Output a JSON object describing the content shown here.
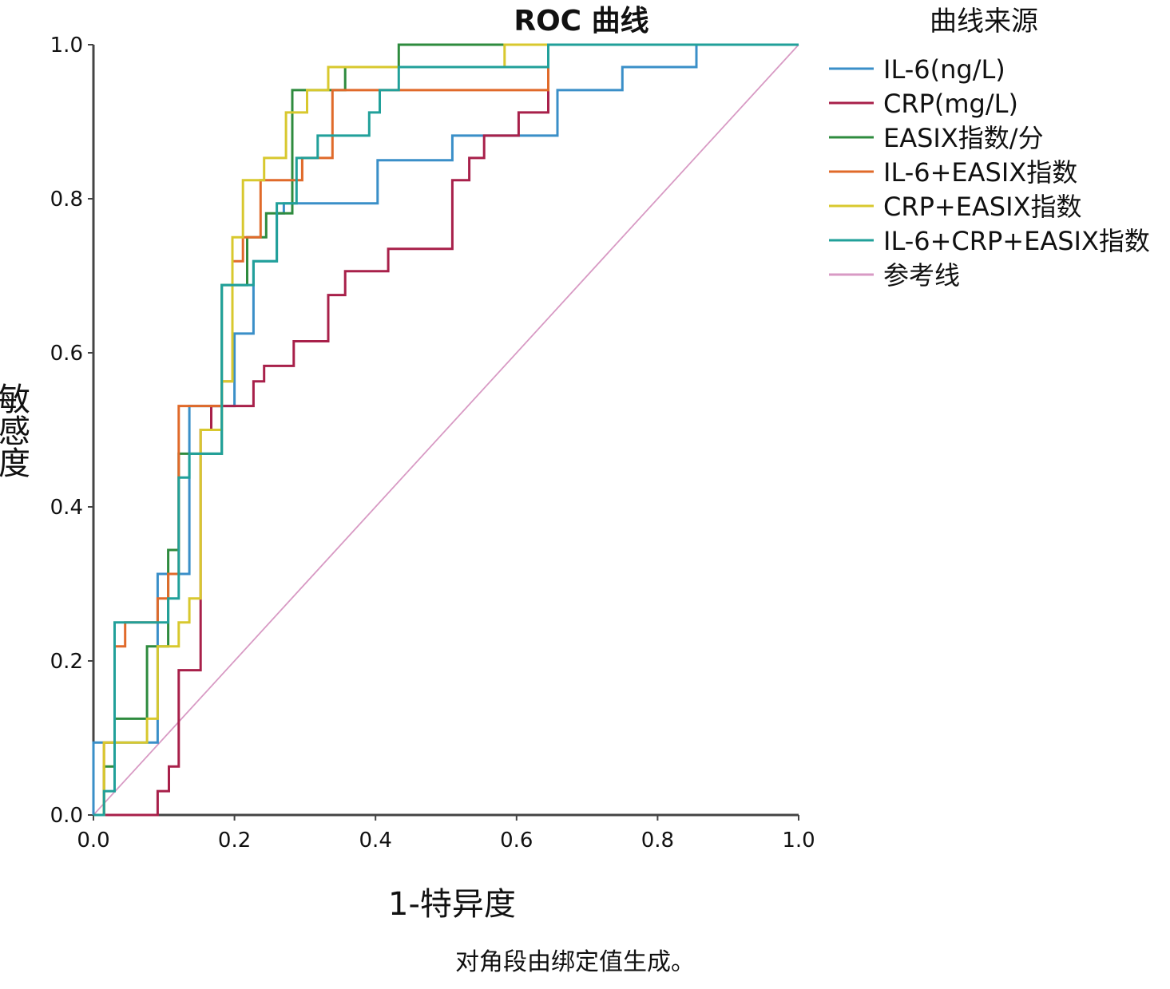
{
  "chart_data": {
    "type": "line",
    "title": "ROC 曲线",
    "xlabel": "1-特异度",
    "ylabel": "敏感度",
    "xlim": [
      0,
      1
    ],
    "ylim": [
      0,
      1
    ],
    "xticks": [
      "0.0",
      "0.2",
      "0.4",
      "0.6",
      "0.8",
      "1.0"
    ],
    "yticks": [
      "0.0",
      "0.2",
      "0.4",
      "0.6",
      "0.8",
      "1.0"
    ],
    "grid": false,
    "legend_title": "曲线来源",
    "legend_position": "right",
    "footnote": "对角段由绑定值生成。",
    "series": [
      {
        "name": "IL-6(ng/L)",
        "color": "#3a8fc8",
        "points": [
          [
            0,
            0
          ],
          [
            0,
            0.094
          ],
          [
            0.091,
            0.094
          ],
          [
            0.091,
            0.125
          ],
          [
            0.091,
            0.188
          ],
          [
            0.091,
            0.25
          ],
          [
            0.091,
            0.313
          ],
          [
            0.136,
            0.313
          ],
          [
            0.136,
            0.375
          ],
          [
            0.136,
            0.5
          ],
          [
            0.136,
            0.531
          ],
          [
            0.2,
            0.531
          ],
          [
            0.2,
            0.594
          ],
          [
            0.2,
            0.625
          ],
          [
            0.227,
            0.625
          ],
          [
            0.227,
            0.656
          ],
          [
            0.227,
            0.719
          ],
          [
            0.26,
            0.719
          ],
          [
            0.26,
            0.781
          ],
          [
            0.27,
            0.781
          ],
          [
            0.27,
            0.794
          ],
          [
            0.403,
            0.794
          ],
          [
            0.403,
            0.85
          ],
          [
            0.509,
            0.85
          ],
          [
            0.509,
            0.882
          ],
          [
            0.658,
            0.882
          ],
          [
            0.658,
            0.941
          ],
          [
            0.75,
            0.941
          ],
          [
            0.75,
            0.971
          ],
          [
            0.855,
            0.971
          ],
          [
            0.855,
            1.0
          ],
          [
            1,
            1
          ]
        ]
      },
      {
        "name": "CRP(mg/L)",
        "color": "#a8204a",
        "points": [
          [
            0,
            0
          ],
          [
            0.091,
            0
          ],
          [
            0.091,
            0.031
          ],
          [
            0.107,
            0.031
          ],
          [
            0.107,
            0.063
          ],
          [
            0.121,
            0.063
          ],
          [
            0.121,
            0.188
          ],
          [
            0.152,
            0.188
          ],
          [
            0.152,
            0.281
          ],
          [
            0.152,
            0.5
          ],
          [
            0.167,
            0.5
          ],
          [
            0.167,
            0.531
          ],
          [
            0.227,
            0.531
          ],
          [
            0.227,
            0.563
          ],
          [
            0.242,
            0.563
          ],
          [
            0.242,
            0.583
          ],
          [
            0.284,
            0.583
          ],
          [
            0.284,
            0.615
          ],
          [
            0.333,
            0.615
          ],
          [
            0.333,
            0.675
          ],
          [
            0.357,
            0.675
          ],
          [
            0.357,
            0.706
          ],
          [
            0.418,
            0.706
          ],
          [
            0.418,
            0.735
          ],
          [
            0.509,
            0.735
          ],
          [
            0.509,
            0.824
          ],
          [
            0.533,
            0.824
          ],
          [
            0.533,
            0.853
          ],
          [
            0.554,
            0.853
          ],
          [
            0.554,
            0.882
          ],
          [
            0.603,
            0.882
          ],
          [
            0.603,
            0.912
          ],
          [
            0.645,
            0.912
          ],
          [
            0.645,
            0.971
          ],
          [
            0.645,
            1.0
          ],
          [
            1,
            1
          ]
        ]
      },
      {
        "name": "EASIX指数/分",
        "color": "#2e8b3e",
        "points": [
          [
            0,
            0
          ],
          [
            0.015,
            0
          ],
          [
            0.015,
            0.063
          ],
          [
            0.03,
            0.063
          ],
          [
            0.03,
            0.125
          ],
          [
            0.076,
            0.125
          ],
          [
            0.076,
            0.219
          ],
          [
            0.106,
            0.219
          ],
          [
            0.106,
            0.344
          ],
          [
            0.121,
            0.344
          ],
          [
            0.121,
            0.469
          ],
          [
            0.182,
            0.469
          ],
          [
            0.182,
            0.563
          ],
          [
            0.182,
            0.688
          ],
          [
            0.218,
            0.688
          ],
          [
            0.218,
            0.75
          ],
          [
            0.245,
            0.75
          ],
          [
            0.245,
            0.781
          ],
          [
            0.282,
            0.781
          ],
          [
            0.282,
            0.824
          ],
          [
            0.282,
            0.882
          ],
          [
            0.282,
            0.941
          ],
          [
            0.357,
            0.941
          ],
          [
            0.357,
            0.971
          ],
          [
            0.433,
            0.971
          ],
          [
            0.433,
            1.0
          ],
          [
            1,
            1
          ]
        ]
      },
      {
        "name": "IL-6+EASIX指数",
        "color": "#e06a2a",
        "points": [
          [
            0,
            0
          ],
          [
            0.015,
            0
          ],
          [
            0.015,
            0.094
          ],
          [
            0.03,
            0.094
          ],
          [
            0.03,
            0.219
          ],
          [
            0.045,
            0.219
          ],
          [
            0.045,
            0.25
          ],
          [
            0.091,
            0.25
          ],
          [
            0.091,
            0.281
          ],
          [
            0.106,
            0.281
          ],
          [
            0.106,
            0.313
          ],
          [
            0.121,
            0.313
          ],
          [
            0.121,
            0.438
          ],
          [
            0.121,
            0.531
          ],
          [
            0.182,
            0.531
          ],
          [
            0.182,
            0.563
          ],
          [
            0.197,
            0.563
          ],
          [
            0.197,
            0.719
          ],
          [
            0.212,
            0.719
          ],
          [
            0.212,
            0.75
          ],
          [
            0.237,
            0.75
          ],
          [
            0.237,
            0.824
          ],
          [
            0.296,
            0.824
          ],
          [
            0.296,
            0.853
          ],
          [
            0.339,
            0.853
          ],
          [
            0.339,
            0.941
          ],
          [
            0.645,
            0.941
          ],
          [
            0.645,
            1.0
          ],
          [
            1,
            1
          ]
        ]
      },
      {
        "name": "CRP+EASIX指数",
        "color": "#d8c82e",
        "points": [
          [
            0,
            0
          ],
          [
            0.015,
            0
          ],
          [
            0.015,
            0.063
          ],
          [
            0.015,
            0.094
          ],
          [
            0.076,
            0.094
          ],
          [
            0.076,
            0.125
          ],
          [
            0.091,
            0.125
          ],
          [
            0.091,
            0.219
          ],
          [
            0.121,
            0.219
          ],
          [
            0.121,
            0.25
          ],
          [
            0.136,
            0.25
          ],
          [
            0.136,
            0.281
          ],
          [
            0.152,
            0.281
          ],
          [
            0.152,
            0.5
          ],
          [
            0.182,
            0.5
          ],
          [
            0.182,
            0.563
          ],
          [
            0.197,
            0.563
          ],
          [
            0.197,
            0.75
          ],
          [
            0.212,
            0.75
          ],
          [
            0.212,
            0.824
          ],
          [
            0.242,
            0.824
          ],
          [
            0.242,
            0.853
          ],
          [
            0.273,
            0.853
          ],
          [
            0.273,
            0.912
          ],
          [
            0.303,
            0.912
          ],
          [
            0.303,
            0.941
          ],
          [
            0.333,
            0.941
          ],
          [
            0.333,
            0.971
          ],
          [
            0.583,
            0.971
          ],
          [
            0.583,
            1.0
          ],
          [
            1,
            1
          ]
        ]
      },
      {
        "name": "IL-6+CRP+EASIX指数",
        "color": "#21a09a",
        "points": [
          [
            0,
            0
          ],
          [
            0.015,
            0
          ],
          [
            0.015,
            0.031
          ],
          [
            0.03,
            0.031
          ],
          [
            0.03,
            0.25
          ],
          [
            0.106,
            0.25
          ],
          [
            0.106,
            0.281
          ],
          [
            0.121,
            0.281
          ],
          [
            0.121,
            0.438
          ],
          [
            0.136,
            0.438
          ],
          [
            0.136,
            0.469
          ],
          [
            0.182,
            0.469
          ],
          [
            0.182,
            0.688
          ],
          [
            0.227,
            0.688
          ],
          [
            0.227,
            0.719
          ],
          [
            0.26,
            0.719
          ],
          [
            0.26,
            0.794
          ],
          [
            0.288,
            0.794
          ],
          [
            0.288,
            0.853
          ],
          [
            0.318,
            0.853
          ],
          [
            0.318,
            0.882
          ],
          [
            0.391,
            0.882
          ],
          [
            0.391,
            0.912
          ],
          [
            0.406,
            0.912
          ],
          [
            0.406,
            0.941
          ],
          [
            0.433,
            0.941
          ],
          [
            0.433,
            0.971
          ],
          [
            0.645,
            0.971
          ],
          [
            0.645,
            1.0
          ],
          [
            1,
            1
          ]
        ]
      },
      {
        "name": "参考线",
        "color": "#d89ac4",
        "points": [
          [
            0,
            0
          ],
          [
            1,
            1
          ]
        ]
      }
    ]
  }
}
